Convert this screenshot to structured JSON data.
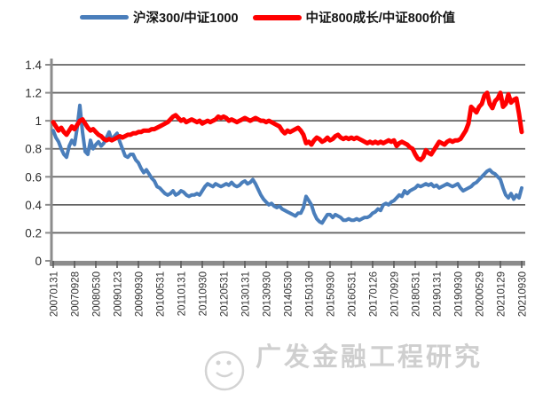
{
  "legend": [
    {
      "label": "沪深300/中证1000",
      "color": "#4A7EBB"
    },
    {
      "label": "中证800成长/中证800价值",
      "color": "#FF0000"
    }
  ],
  "watermark": "广发金融工程研究",
  "colors": {
    "background": "#FFFFFF",
    "axis": "#8C8C8C",
    "grid": "#646464",
    "tick": "#595959",
    "blue_series": "#4A7EBB",
    "red_series": "#FF0000"
  },
  "chart_data": {
    "type": "line",
    "title": "",
    "xlabel": "",
    "ylabel": "",
    "x_frequency": "monthly",
    "x_start": "2007-01",
    "x_end": "2021-09",
    "ylim": [
      0,
      1.4
    ],
    "yticks": [
      0,
      0.2,
      0.4,
      0.6,
      0.8,
      1,
      1.2,
      1.4
    ],
    "ytick_labels": [
      "0",
      "0.2",
      "0.4",
      "0.6",
      "0.8",
      "1",
      "1.2",
      "1.4"
    ],
    "grid": "horizontal",
    "legend_position": "top",
    "x_tick_every": 8,
    "x_tick_labels": [
      "20070131",
      "20070928",
      "20080530",
      "20090123",
      "20090930",
      "20100531",
      "20110131",
      "20110930",
      "20120531",
      "20130131",
      "20130930",
      "20140530",
      "20150130",
      "20150930",
      "20160531",
      "20170126",
      "20170929",
      "20180531",
      "20190131",
      "20190930",
      "20200529",
      "20210129",
      "20210930"
    ],
    "series": [
      {
        "name": "沪深300/中证1000",
        "color": "#4A7EBB",
        "width": 4,
        "values": [
          0.93,
          0.88,
          0.85,
          0.8,
          0.76,
          0.74,
          0.82,
          0.86,
          0.83,
          0.95,
          1.11,
          0.92,
          0.78,
          0.76,
          0.86,
          0.8,
          0.83,
          0.85,
          0.82,
          0.84,
          0.88,
          0.92,
          0.86,
          0.89,
          0.91,
          0.85,
          0.8,
          0.75,
          0.74,
          0.76,
          0.76,
          0.72,
          0.7,
          0.66,
          0.63,
          0.65,
          0.62,
          0.59,
          0.57,
          0.53,
          0.52,
          0.5,
          0.48,
          0.47,
          0.48,
          0.5,
          0.47,
          0.48,
          0.5,
          0.49,
          0.47,
          0.46,
          0.47,
          0.47,
          0.48,
          0.47,
          0.5,
          0.53,
          0.55,
          0.54,
          0.53,
          0.55,
          0.54,
          0.53,
          0.54,
          0.55,
          0.54,
          0.56,
          0.54,
          0.53,
          0.54,
          0.56,
          0.57,
          0.55,
          0.56,
          0.58,
          0.55,
          0.51,
          0.47,
          0.44,
          0.42,
          0.4,
          0.41,
          0.39,
          0.38,
          0.39,
          0.37,
          0.36,
          0.35,
          0.34,
          0.33,
          0.32,
          0.34,
          0.34,
          0.38,
          0.46,
          0.43,
          0.4,
          0.34,
          0.3,
          0.28,
          0.27,
          0.3,
          0.33,
          0.33,
          0.31,
          0.33,
          0.32,
          0.31,
          0.29,
          0.29,
          0.3,
          0.29,
          0.29,
          0.3,
          0.29,
          0.3,
          0.31,
          0.31,
          0.32,
          0.34,
          0.35,
          0.37,
          0.36,
          0.4,
          0.41,
          0.4,
          0.42,
          0.43,
          0.45,
          0.47,
          0.46,
          0.5,
          0.48,
          0.5,
          0.51,
          0.52,
          0.54,
          0.53,
          0.54,
          0.55,
          0.54,
          0.55,
          0.53,
          0.54,
          0.52,
          0.53,
          0.54,
          0.55,
          0.54,
          0.53,
          0.54,
          0.55,
          0.52,
          0.5,
          0.51,
          0.52,
          0.53,
          0.55,
          0.56,
          0.58,
          0.6,
          0.62,
          0.64,
          0.65,
          0.63,
          0.62,
          0.6,
          0.58,
          0.52,
          0.47,
          0.45,
          0.48,
          0.44,
          0.47,
          0.45,
          0.52
        ]
      },
      {
        "name": "中证800成长/中证800价值",
        "color": "#FF0000",
        "width": 5,
        "values": [
          0.99,
          0.96,
          0.93,
          0.95,
          0.92,
          0.9,
          0.93,
          0.96,
          0.94,
          0.97,
          1.0,
          1.01,
          0.98,
          0.95,
          0.93,
          0.94,
          0.92,
          0.9,
          0.89,
          0.87,
          0.86,
          0.87,
          0.86,
          0.87,
          0.88,
          0.89,
          0.88,
          0.89,
          0.9,
          0.9,
          0.91,
          0.91,
          0.92,
          0.92,
          0.93,
          0.93,
          0.93,
          0.94,
          0.94,
          0.95,
          0.96,
          0.97,
          0.98,
          0.99,
          1.01,
          1.03,
          1.04,
          1.02,
          1.0,
          1.01,
          0.99,
          1.0,
          1.01,
          1.0,
          0.99,
          1.0,
          0.98,
          0.99,
          1.0,
          0.99,
          1.0,
          1.01,
          1.03,
          1.02,
          1.03,
          1.02,
          1.0,
          1.01,
          1.0,
          0.99,
          1.0,
          1.01,
          1.02,
          1.01,
          1.0,
          1.01,
          1.02,
          1.01,
          1.0,
          1.0,
          0.99,
          1.0,
          0.99,
          0.98,
          0.97,
          0.96,
          0.93,
          0.91,
          0.93,
          0.92,
          0.93,
          0.94,
          0.95,
          0.93,
          0.9,
          0.84,
          0.85,
          0.83,
          0.86,
          0.88,
          0.87,
          0.85,
          0.86,
          0.88,
          0.86,
          0.87,
          0.89,
          0.9,
          0.88,
          0.87,
          0.88,
          0.87,
          0.88,
          0.87,
          0.88,
          0.87,
          0.86,
          0.85,
          0.84,
          0.85,
          0.84,
          0.85,
          0.84,
          0.85,
          0.84,
          0.85,
          0.86,
          0.85,
          0.86,
          0.82,
          0.84,
          0.85,
          0.84,
          0.83,
          0.81,
          0.8,
          0.76,
          0.73,
          0.72,
          0.74,
          0.79,
          0.77,
          0.76,
          0.79,
          0.82,
          0.85,
          0.84,
          0.83,
          0.85,
          0.86,
          0.85,
          0.86,
          0.86,
          0.87,
          0.9,
          0.93,
          0.98,
          1.1,
          1.08,
          1.06,
          1.1,
          1.12,
          1.18,
          1.2,
          1.12,
          1.09,
          1.14,
          1.16,
          1.2,
          1.1,
          1.12,
          1.19,
          1.13,
          1.15,
          1.16,
          1.05,
          0.92
        ]
      }
    ]
  }
}
